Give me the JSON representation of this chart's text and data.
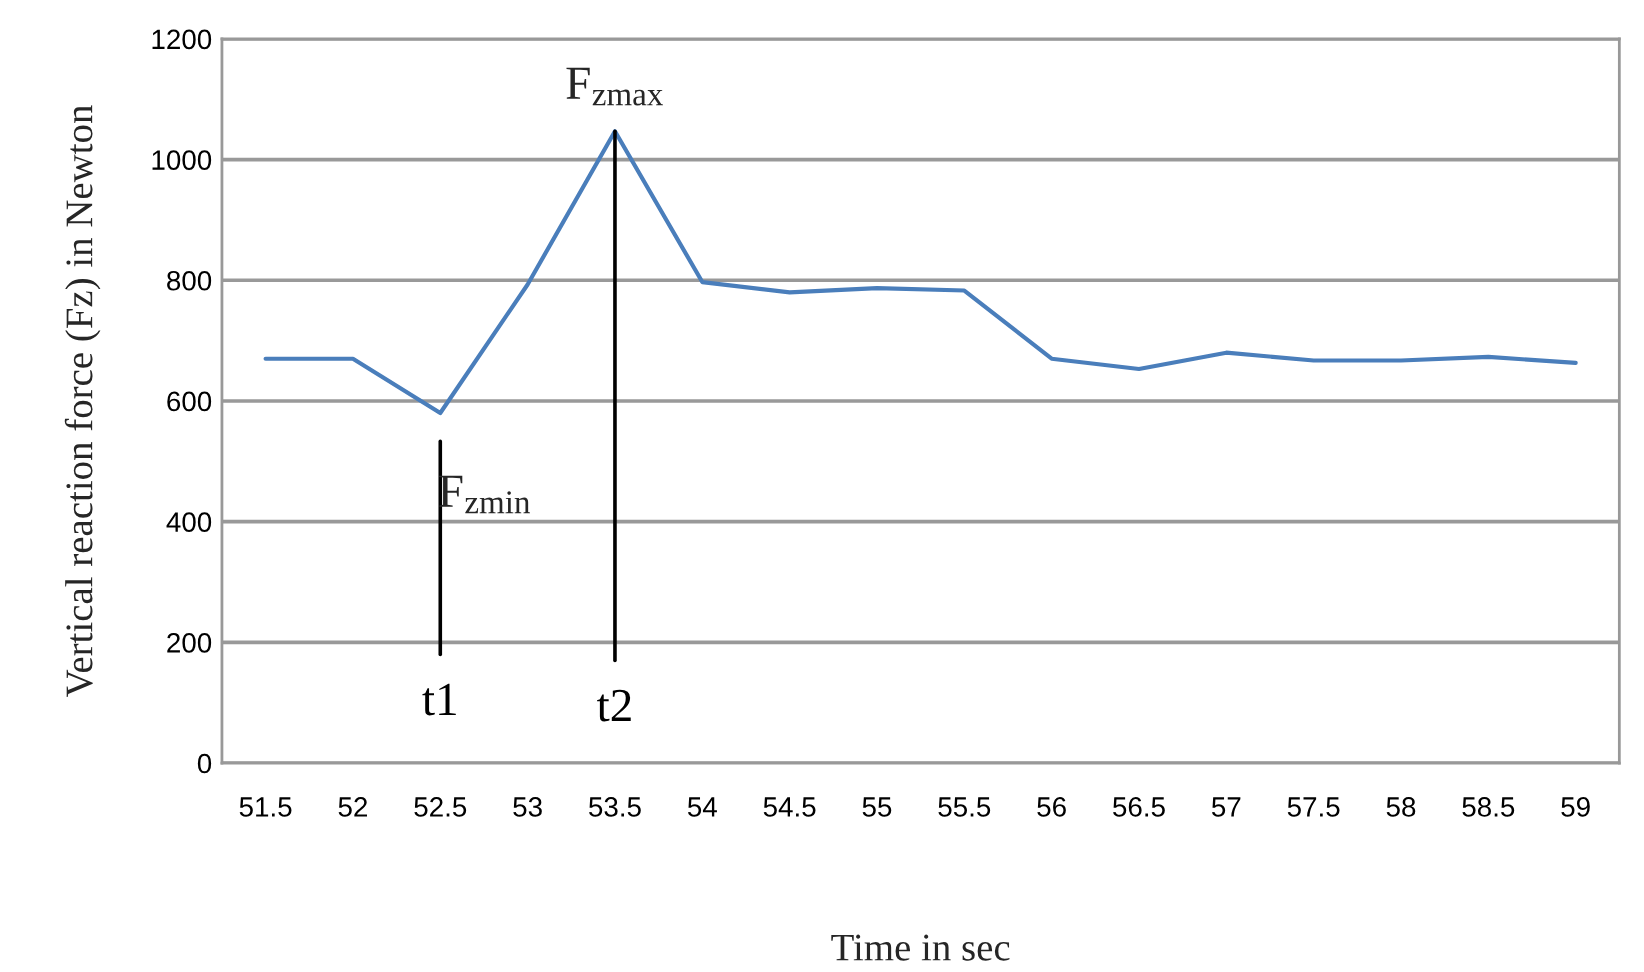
{
  "chart_data": {
    "type": "line",
    "xlabel": "Time in sec",
    "ylabel": "Vertical reaction force (Fz) in Newton",
    "series": [
      {
        "color": "#4a7ebb",
        "x": [
          51.5,
          52,
          52.5,
          53,
          53.5,
          54,
          54.5,
          55,
          55.5,
          56,
          56.5,
          57,
          57.5,
          58,
          58.5,
          59
        ],
        "values": [
          670,
          670,
          580,
          793,
          1047,
          797,
          780,
          787,
          783,
          670,
          653,
          680,
          667,
          667,
          673,
          663
        ]
      },
      {
        "name": "t1",
        "color": "#000000",
        "x": [
          52.5,
          52.5
        ],
        "values": [
          180,
          533
        ]
      },
      {
        "name": "t2",
        "color": "#000000",
        "x": [
          53.5,
          53.5
        ],
        "values": [
          170,
          1047
        ]
      }
    ],
    "annotations": [
      {
        "text": "F$_{zmax}$",
        "x": 53.5,
        "y": 1047
      },
      {
        "text": "F$_{zmin}$",
        "x": 52.5,
        "y": 580
      }
    ],
    "xlim": [
      51.25,
      59.25
    ],
    "xticks": [
      51.5,
      52,
      52.5,
      53,
      53.5,
      54,
      54.5,
      55,
      55.5,
      56,
      56.5,
      57,
      57.5,
      58,
      58.5,
      59
    ],
    "ylim": [
      0,
      1200
    ],
    "yticks": [
      0,
      200,
      400,
      600,
      800,
      1000,
      1200
    ],
    "grid": "y",
    "line_style": "solid",
    "marker": "none"
  }
}
